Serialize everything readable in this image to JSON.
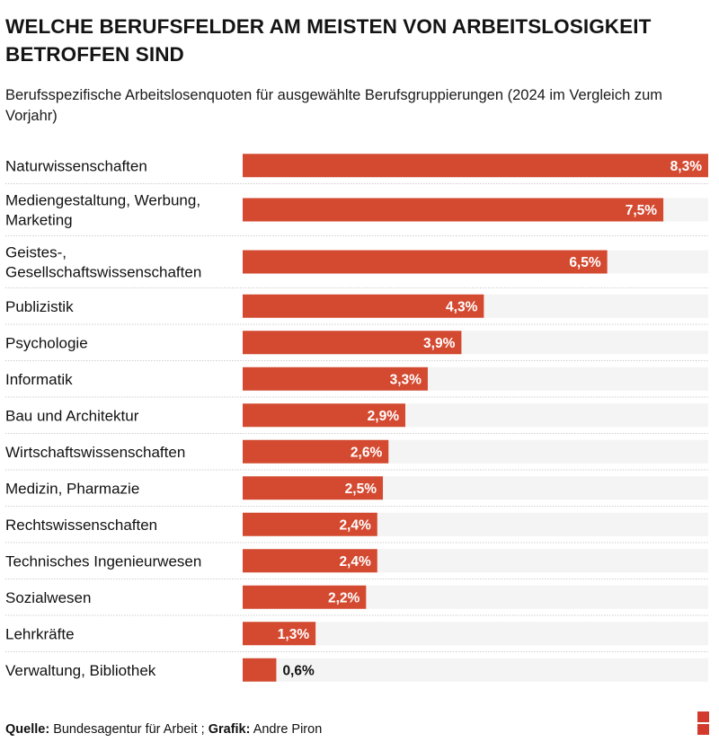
{
  "header": {
    "title": "WELCHE BERUFSFELDER AM MEISTEN VON ARBEITSLOSIGKEIT BETROFFEN SIND",
    "subtitle": "Berufsspezifische Arbeitslosenquoten für ausgewählte Berufsgruppierungen (2024 im Vergleich zum Vorjahr)"
  },
  "footer": {
    "source_label": "Quelle:",
    "source_value": "Bundesagentur für Arbeit ;",
    "graphic_label": "Grafik:",
    "graphic_value": "Andre Piron"
  },
  "colors": {
    "bar": "#d44a31",
    "track": "#f4f4f4",
    "separator": "#cfcfcf",
    "logo": "#d23a2d"
  },
  "chart_data": {
    "type": "bar",
    "orientation": "horizontal",
    "title": "WELCHE BERUFSFELDER AM MEISTEN VON ARBEITSLOSIGKEIT BETROFFEN SIND",
    "subtitle": "Berufsspezifische Arbeitslosenquoten für ausgewählte Berufsgruppierungen (2024 im Vergleich zum Vorjahr)",
    "xlabel": "",
    "ylabel": "",
    "unit": "%",
    "xlim": [
      0,
      8.3
    ],
    "grid": false,
    "legend": "none",
    "categories": [
      [
        "Naturwissenschaften"
      ],
      [
        "Mediengestaltung, Werbung,",
        "Marketing"
      ],
      [
        "Geistes-,",
        "Gesellschaftswissenschaften"
      ],
      [
        "Publizistik"
      ],
      [
        "Psychologie"
      ],
      [
        "Informatik"
      ],
      [
        "Bau und Architektur"
      ],
      [
        "Wirtschaftswissenschaften"
      ],
      [
        "Medizin, Pharmazie"
      ],
      [
        "Rechtswissenschaften"
      ],
      [
        "Technisches Ingenieurwesen"
      ],
      [
        "Sozialwesen"
      ],
      [
        "Lehrkräfte"
      ],
      [
        "Verwaltung, Bibliothek"
      ]
    ],
    "values": [
      8.3,
      7.5,
      6.5,
      4.3,
      3.9,
      3.3,
      2.9,
      2.6,
      2.5,
      2.4,
      2.4,
      2.2,
      1.3,
      0.6
    ],
    "value_labels": [
      "8,3%",
      "7,5%",
      "6,5%",
      "4,3%",
      "3,9%",
      "3,3%",
      "2,9%",
      "2,6%",
      "2,5%",
      "2,4%",
      "2,4%",
      "2,2%",
      "1,3%",
      "0,6%"
    ]
  }
}
